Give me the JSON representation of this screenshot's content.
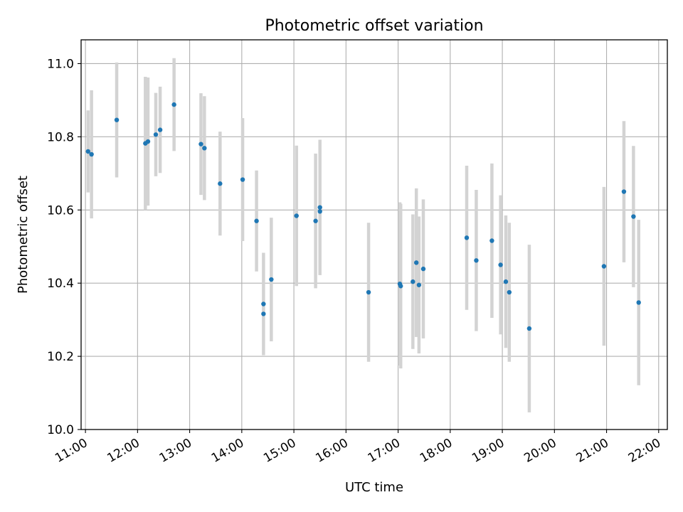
{
  "chart_data": {
    "type": "scatter",
    "title": "Photometric offset variation",
    "xlabel": "UTC time",
    "ylabel": "Photometric offset",
    "xlim": [
      "10:55",
      "22:10"
    ],
    "ylim": [
      10.0,
      11.065
    ],
    "x_ticks": [
      "11:00",
      "12:00",
      "13:00",
      "14:00",
      "15:00",
      "16:00",
      "17:00",
      "18:00",
      "19:00",
      "20:00",
      "21:00",
      "22:00"
    ],
    "y_ticks": [
      "10.0",
      "10.2",
      "10.4",
      "10.6",
      "10.8",
      "11.0"
    ],
    "grid": true,
    "colors": {
      "marker": "#1f77b4",
      "errorbar": "#d3d3d3",
      "grid": "#b0b0b0"
    },
    "points": [
      {
        "time": "11:03",
        "y": 10.76,
        "err": 0.112
      },
      {
        "time": "11:07",
        "y": 10.752,
        "err": 0.175
      },
      {
        "time": "11:36",
        "y": 10.846,
        "err": 0.157
      },
      {
        "time": "12:09",
        "y": 10.782,
        "err": 0.182
      },
      {
        "time": "12:12",
        "y": 10.787,
        "err": 0.175
      },
      {
        "time": "12:21",
        "y": 10.806,
        "err": 0.114
      },
      {
        "time": "12:26",
        "y": 10.819,
        "err": 0.118
      },
      {
        "time": "12:42",
        "y": 10.888,
        "err": 0.127
      },
      {
        "time": "13:13",
        "y": 10.78,
        "err": 0.139
      },
      {
        "time": "13:17",
        "y": 10.769,
        "err": 0.142
      },
      {
        "time": "13:35",
        "y": 10.672,
        "err": 0.142
      },
      {
        "time": "14:01",
        "y": 10.683,
        "err": 0.168
      },
      {
        "time": "14:17",
        "y": 10.57,
        "err": 0.138
      },
      {
        "time": "14:25",
        "y": 10.343,
        "err": 0.14
      },
      {
        "time": "14:25",
        "y": 10.316,
        "err": 0.0
      },
      {
        "time": "14:34",
        "y": 10.41,
        "err": 0.169
      },
      {
        "time": "15:03",
        "y": 10.584,
        "err": 0.192
      },
      {
        "time": "15:25",
        "y": 10.57,
        "err": 0.184
      },
      {
        "time": "15:30",
        "y": 10.607,
        "err": 0.185
      },
      {
        "time": "15:30",
        "y": 10.596,
        "err": 0.0
      },
      {
        "time": "16:26",
        "y": 10.375,
        "err": 0.19
      },
      {
        "time": "17:02",
        "y": 10.398,
        "err": 0.223
      },
      {
        "time": "17:03",
        "y": 10.392,
        "err": 0.225
      },
      {
        "time": "17:17",
        "y": 10.404,
        "err": 0.184
      },
      {
        "time": "17:21",
        "y": 10.456,
        "err": 0.203
      },
      {
        "time": "17:24",
        "y": 10.395,
        "err": 0.187
      },
      {
        "time": "17:29",
        "y": 10.439,
        "err": 0.19
      },
      {
        "time": "18:19",
        "y": 10.524,
        "err": 0.197
      },
      {
        "time": "18:30",
        "y": 10.462,
        "err": 0.193
      },
      {
        "time": "18:48",
        "y": 10.516,
        "err": 0.211
      },
      {
        "time": "18:58",
        "y": 10.45,
        "err": 0.19
      },
      {
        "time": "19:04",
        "y": 10.404,
        "err": 0.181
      },
      {
        "time": "19:08",
        "y": 10.375,
        "err": 0.19
      },
      {
        "time": "19:31",
        "y": 10.276,
        "err": 0.229
      },
      {
        "time": "20:57",
        "y": 10.446,
        "err": 0.217
      },
      {
        "time": "21:20",
        "y": 10.65,
        "err": 0.193
      },
      {
        "time": "21:31",
        "y": 10.582,
        "err": 0.193
      },
      {
        "time": "21:37",
        "y": 10.347,
        "err": 0.226
      }
    ]
  }
}
